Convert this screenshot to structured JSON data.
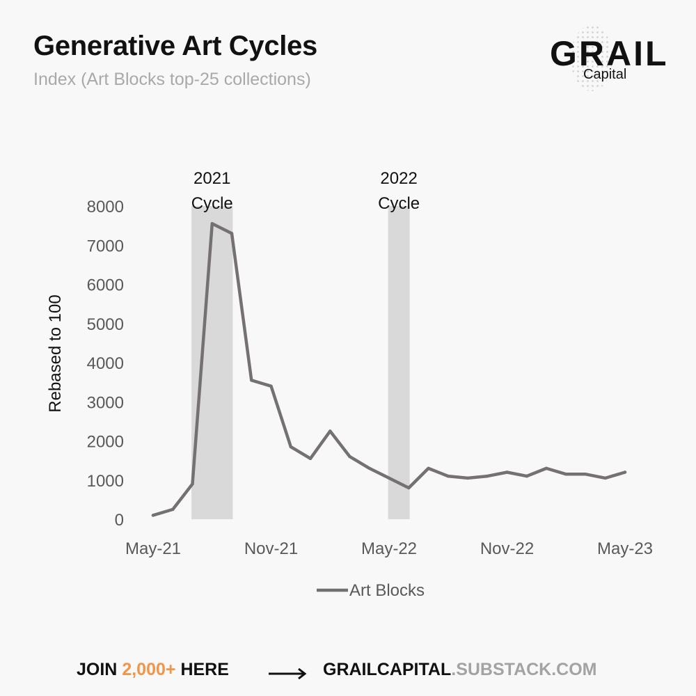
{
  "header": {
    "title": "Generative Art Cycles",
    "subtitle": "Index (Art Blocks top-25 collections)"
  },
  "logo": {
    "name": "GRAIL",
    "sub": "Capital"
  },
  "chart_data": {
    "type": "line",
    "title": "Generative Art Cycles",
    "subtitle": "Index (Art Blocks top-25 collections)",
    "xlabel": "",
    "ylabel": "Rebased to 100",
    "ylim": [
      0,
      8000
    ],
    "yticks": [
      "0",
      "1000",
      "2000",
      "3000",
      "4000",
      "5000",
      "6000",
      "7000",
      "8000"
    ],
    "xticks": [
      "May-21",
      "Nov-21",
      "May-22",
      "Nov-22",
      "May-23"
    ],
    "x": [
      "May-21",
      "Jun-21",
      "Jul-21",
      "Aug-21",
      "Sep-21",
      "Oct-21",
      "Nov-21",
      "Dec-21",
      "Jan-22",
      "Feb-22",
      "Mar-22",
      "Apr-22",
      "May-22",
      "Jun-22",
      "Jul-22",
      "Aug-22",
      "Sep-22",
      "Oct-22",
      "Nov-22",
      "Dec-22",
      "Jan-23",
      "Feb-23",
      "Mar-23",
      "Apr-23",
      "May-23"
    ],
    "series": [
      {
        "name": "Art Blocks",
        "color": "#767171",
        "values": [
          100,
          250,
          900,
          7550,
          7300,
          3550,
          3400,
          1850,
          1550,
          2250,
          1600,
          1300,
          1050,
          800,
          1300,
          1100,
          1050,
          1100,
          1200,
          1100,
          1300,
          1150,
          1150,
          1050,
          1200
        ]
      }
    ],
    "shaded_periods": [
      {
        "label_line1": "2021",
        "label_line2": "Cycle",
        "start": "Jul-21",
        "end": "Sep-21"
      },
      {
        "label_line1": "2022",
        "label_line2": "Cycle",
        "start": "May-22",
        "end": "Jun-22"
      }
    ],
    "legend": "bottom-center",
    "grid": false
  },
  "footer": {
    "join": "JOIN",
    "count": "2,000+",
    "here": "HERE",
    "url_main": "GRAILCAPITAL",
    "url_rest": ".SUBSTACK.COM",
    "colors": {
      "accent": "#f0954a",
      "url_rest": "#a3a3a3"
    }
  }
}
